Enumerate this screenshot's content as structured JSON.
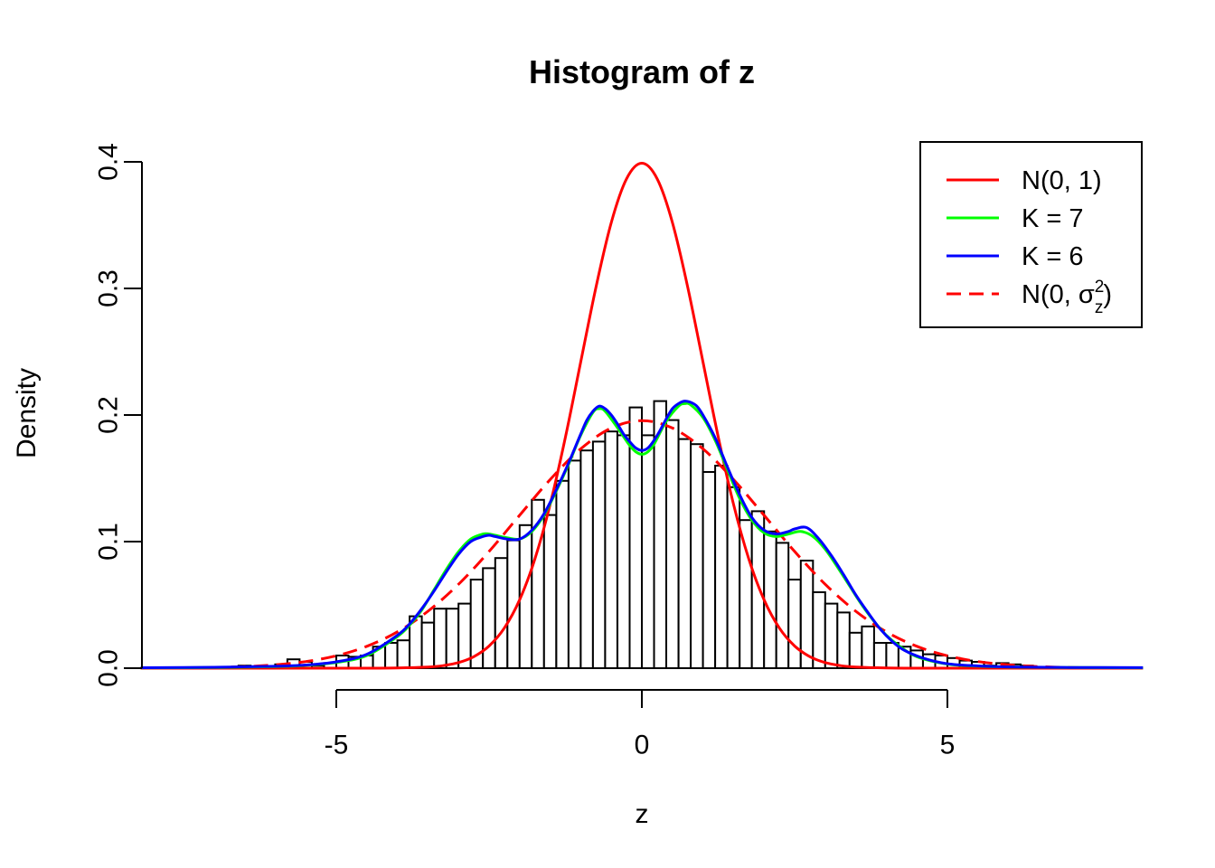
{
  "page": {
    "background": "#ffffff"
  },
  "chart_data": {
    "type": "histogram",
    "title": "Histogram of z",
    "xlabel": "z",
    "ylabel": "Density",
    "x_axis": {
      "tick_labels": [
        "-5",
        "0",
        "5"
      ],
      "tick_values": [
        -5,
        0,
        5
      ],
      "shown_range": [
        -5,
        5
      ]
    },
    "y_axis": {
      "tick_labels": [
        "0.0",
        "0.1",
        "0.2",
        "0.3",
        "0.4"
      ],
      "tick_values": [
        0,
        0.1,
        0.2,
        0.3,
        0.4
      ],
      "ylim": [
        0,
        0.4
      ]
    },
    "grid": false,
    "histogram": {
      "bin_width": 0.2,
      "fill": "#ffffff",
      "stroke": "#000000",
      "bars": [
        [
          -6.6,
          0.002
        ],
        [
          -6.0,
          0.003
        ],
        [
          -5.8,
          0.007
        ],
        [
          -5.6,
          0.005
        ],
        [
          -5.4,
          0.002
        ],
        [
          -5.2,
          0.004
        ],
        [
          -5.0,
          0.01
        ],
        [
          -4.8,
          0.009
        ],
        [
          -4.6,
          0.01
        ],
        [
          -4.4,
          0.017
        ],
        [
          -4.2,
          0.02
        ],
        [
          -4.0,
          0.022
        ],
        [
          -3.8,
          0.041
        ],
        [
          -3.6,
          0.036
        ],
        [
          -3.4,
          0.047
        ],
        [
          -3.2,
          0.047
        ],
        [
          -3.0,
          0.051
        ],
        [
          -2.8,
          0.07
        ],
        [
          -2.6,
          0.079
        ],
        [
          -2.4,
          0.087
        ],
        [
          -2.2,
          0.101
        ],
        [
          -2.0,
          0.113
        ],
        [
          -1.8,
          0.133
        ],
        [
          -1.6,
          0.121
        ],
        [
          -1.4,
          0.148
        ],
        [
          -1.2,
          0.164
        ],
        [
          -1.0,
          0.172
        ],
        [
          -0.8,
          0.179
        ],
        [
          -0.6,
          0.187
        ],
        [
          -0.4,
          0.184
        ],
        [
          -0.2,
          0.206
        ],
        [
          0.0,
          0.184
        ],
        [
          0.2,
          0.211
        ],
        [
          0.4,
          0.196
        ],
        [
          0.6,
          0.181
        ],
        [
          0.8,
          0.177
        ],
        [
          1.0,
          0.155
        ],
        [
          1.2,
          0.16
        ],
        [
          1.4,
          0.143
        ],
        [
          1.6,
          0.117
        ],
        [
          1.8,
          0.124
        ],
        [
          2.0,
          0.108
        ],
        [
          2.2,
          0.099
        ],
        [
          2.4,
          0.07
        ],
        [
          2.6,
          0.085
        ],
        [
          2.8,
          0.06
        ],
        [
          3.0,
          0.051
        ],
        [
          3.2,
          0.044
        ],
        [
          3.4,
          0.028
        ],
        [
          3.6,
          0.033
        ],
        [
          3.8,
          0.02
        ],
        [
          4.0,
          0.02
        ],
        [
          4.2,
          0.017
        ],
        [
          4.4,
          0.014
        ],
        [
          4.6,
          0.011
        ],
        [
          4.8,
          0.01
        ],
        [
          5.0,
          0.008
        ],
        [
          5.2,
          0.006
        ],
        [
          5.4,
          0.005
        ],
        [
          5.6,
          0.002
        ],
        [
          5.8,
          0.004
        ],
        [
          6.0,
          0.003
        ],
        [
          6.2,
          0.002
        ]
      ]
    },
    "series": [
      {
        "id": "n01",
        "label": "N(0, 1)",
        "color": "#ff0000",
        "dashed": false,
        "points": [
          [
            -8.2,
            0.0
          ],
          [
            -5.5,
            0.0
          ],
          [
            -5.0,
            0.0
          ],
          [
            -4.5,
            2e-05
          ],
          [
            -4.0,
            0.00013
          ],
          [
            -3.5,
            0.00087
          ],
          [
            -3.25,
            0.00203
          ],
          [
            -3.0,
            0.00443
          ],
          [
            -2.75,
            0.00909
          ],
          [
            -2.5,
            0.01753
          ],
          [
            -2.25,
            0.03174
          ],
          [
            -2.0,
            0.05399
          ],
          [
            -1.75,
            0.08628
          ],
          [
            -1.5,
            0.12952
          ],
          [
            -1.25,
            0.18265
          ],
          [
            -1.0,
            0.24197
          ],
          [
            -0.75,
            0.30114
          ],
          [
            -0.5,
            0.35207
          ],
          [
            -0.25,
            0.38667
          ],
          [
            0.0,
            0.39894
          ],
          [
            0.25,
            0.38667
          ],
          [
            0.5,
            0.35207
          ],
          [
            0.75,
            0.30114
          ],
          [
            1.0,
            0.24197
          ],
          [
            1.25,
            0.18265
          ],
          [
            1.5,
            0.12952
          ],
          [
            1.75,
            0.08628
          ],
          [
            2.0,
            0.05399
          ],
          [
            2.25,
            0.03174
          ],
          [
            2.5,
            0.01753
          ],
          [
            2.75,
            0.00909
          ],
          [
            3.0,
            0.00443
          ],
          [
            3.25,
            0.00203
          ],
          [
            3.5,
            0.00087
          ],
          [
            4.0,
            0.00013
          ],
          [
            4.5,
            2e-05
          ],
          [
            5.0,
            0.0
          ],
          [
            5.5,
            0.0
          ],
          [
            8.2,
            0.0
          ]
        ]
      },
      {
        "id": "n0sigma2",
        "label": "N(0, σz²)",
        "label_parts": {
          "pre": "N(0, σ",
          "sup": "2",
          "sub": "z",
          "post": ")"
        },
        "color": "#ff0000",
        "dashed": true,
        "sigma": 2.04,
        "peak": 0.1956,
        "points": [
          [
            -8.2,
            7e-05
          ],
          [
            -7.5,
            0.00023
          ],
          [
            -7.0,
            0.00056
          ],
          [
            -6.5,
            0.00125
          ],
          [
            -6.0,
            0.00264
          ],
          [
            -5.5,
            0.00524
          ],
          [
            -5.0,
            0.0098
          ],
          [
            -4.5,
            0.0173
          ],
          [
            -4.0,
            0.0287
          ],
          [
            -3.5,
            0.045
          ],
          [
            -3.0,
            0.0663
          ],
          [
            -2.5,
            0.0922
          ],
          [
            -2.0,
            0.1208
          ],
          [
            -1.5,
            0.149
          ],
          [
            -1.0,
            0.1733
          ],
          [
            -0.5,
            0.1897
          ],
          [
            0.0,
            0.1956
          ],
          [
            0.5,
            0.1897
          ],
          [
            1.0,
            0.1733
          ],
          [
            1.5,
            0.149
          ],
          [
            2.0,
            0.1208
          ],
          [
            2.5,
            0.0922
          ],
          [
            3.0,
            0.0663
          ],
          [
            3.5,
            0.045
          ],
          [
            4.0,
            0.0287
          ],
          [
            4.5,
            0.0173
          ],
          [
            5.0,
            0.0098
          ],
          [
            5.5,
            0.00524
          ],
          [
            6.0,
            0.00264
          ],
          [
            6.5,
            0.00125
          ],
          [
            7.0,
            0.00056
          ],
          [
            7.5,
            0.00023
          ],
          [
            8.2,
            7e-05
          ]
        ]
      },
      {
        "id": "k7",
        "label": "K = 7",
        "color": "#00ff00",
        "dashed": false,
        "points": [
          [
            -8.2,
            0.0003
          ],
          [
            -7.0,
            0.0005
          ],
          [
            -6.0,
            0.0013
          ],
          [
            -5.5,
            0.0022
          ],
          [
            -5.0,
            0.0045
          ],
          [
            -4.5,
            0.01
          ],
          [
            -4.0,
            0.025
          ],
          [
            -3.8,
            0.034
          ],
          [
            -3.6,
            0.046
          ],
          [
            -3.4,
            0.062
          ],
          [
            -3.2,
            0.078
          ],
          [
            -3.0,
            0.092
          ],
          [
            -2.8,
            0.102
          ],
          [
            -2.6,
            0.106
          ],
          [
            -2.5,
            0.106
          ],
          [
            -2.4,
            0.105
          ],
          [
            -2.2,
            0.103
          ],
          [
            -2.0,
            0.102
          ],
          [
            -1.8,
            0.108
          ],
          [
            -1.6,
            0.121
          ],
          [
            -1.4,
            0.14
          ],
          [
            -1.2,
            0.161
          ],
          [
            -1.0,
            0.184
          ],
          [
            -0.8,
            0.202
          ],
          [
            -0.7,
            0.205
          ],
          [
            -0.6,
            0.203
          ],
          [
            -0.4,
            0.19
          ],
          [
            -0.2,
            0.176
          ],
          [
            -0.1,
            0.171
          ],
          [
            0.0,
            0.169
          ],
          [
            0.1,
            0.171
          ],
          [
            0.2,
            0.177
          ],
          [
            0.4,
            0.195
          ],
          [
            0.6,
            0.207
          ],
          [
            0.7,
            0.209
          ],
          [
            0.8,
            0.208
          ],
          [
            1.0,
            0.198
          ],
          [
            1.2,
            0.18
          ],
          [
            1.4,
            0.157
          ],
          [
            1.6,
            0.134
          ],
          [
            1.8,
            0.117
          ],
          [
            2.0,
            0.107
          ],
          [
            2.2,
            0.104
          ],
          [
            2.4,
            0.106
          ],
          [
            2.6,
            0.108
          ],
          [
            2.8,
            0.104
          ],
          [
            3.0,
            0.094
          ],
          [
            3.2,
            0.08
          ],
          [
            3.4,
            0.065
          ],
          [
            3.6,
            0.05
          ],
          [
            3.8,
            0.037
          ],
          [
            4.0,
            0.026
          ],
          [
            4.2,
            0.018
          ],
          [
            4.5,
            0.009
          ],
          [
            5.0,
            0.0032
          ],
          [
            5.5,
            0.0016
          ],
          [
            6.0,
            0.0009
          ],
          [
            7.0,
            0.0005
          ],
          [
            8.2,
            0.0003
          ]
        ]
      },
      {
        "id": "k6",
        "label": "K = 6",
        "color": "#0000ff",
        "dashed": false,
        "points": [
          [
            -8.2,
            0.0004
          ],
          [
            -7.0,
            0.0007
          ],
          [
            -6.0,
            0.0015
          ],
          [
            -5.5,
            0.0025
          ],
          [
            -5.0,
            0.005
          ],
          [
            -4.5,
            0.011
          ],
          [
            -4.0,
            0.026
          ],
          [
            -3.8,
            0.035
          ],
          [
            -3.6,
            0.047
          ],
          [
            -3.4,
            0.061
          ],
          [
            -3.2,
            0.076
          ],
          [
            -3.0,
            0.09
          ],
          [
            -2.8,
            0.1
          ],
          [
            -2.6,
            0.104
          ],
          [
            -2.5,
            0.105
          ],
          [
            -2.4,
            0.104
          ],
          [
            -2.2,
            0.102
          ],
          [
            -2.0,
            0.102
          ],
          [
            -1.8,
            0.109
          ],
          [
            -1.6,
            0.122
          ],
          [
            -1.4,
            0.141
          ],
          [
            -1.2,
            0.162
          ],
          [
            -1.0,
            0.185
          ],
          [
            -0.9,
            0.196
          ],
          [
            -0.8,
            0.203
          ],
          [
            -0.7,
            0.207
          ],
          [
            -0.6,
            0.205
          ],
          [
            -0.5,
            0.2
          ],
          [
            -0.4,
            0.193
          ],
          [
            -0.3,
            0.185
          ],
          [
            -0.2,
            0.179
          ],
          [
            -0.1,
            0.174
          ],
          [
            0.0,
            0.172
          ],
          [
            0.1,
            0.174
          ],
          [
            0.2,
            0.18
          ],
          [
            0.3,
            0.188
          ],
          [
            0.4,
            0.197
          ],
          [
            0.5,
            0.205
          ],
          [
            0.6,
            0.209
          ],
          [
            0.7,
            0.211
          ],
          [
            0.8,
            0.21
          ],
          [
            0.9,
            0.207
          ],
          [
            1.0,
            0.2
          ],
          [
            1.2,
            0.182
          ],
          [
            1.4,
            0.159
          ],
          [
            1.6,
            0.137
          ],
          [
            1.8,
            0.119
          ],
          [
            2.0,
            0.109
          ],
          [
            2.2,
            0.106
          ],
          [
            2.4,
            0.108
          ],
          [
            2.5,
            0.11
          ],
          [
            2.7,
            0.111
          ],
          [
            2.9,
            0.102
          ],
          [
            3.1,
            0.089
          ],
          [
            3.3,
            0.074
          ],
          [
            3.5,
            0.058
          ],
          [
            3.7,
            0.044
          ],
          [
            3.9,
            0.031
          ],
          [
            4.1,
            0.021
          ],
          [
            4.3,
            0.014
          ],
          [
            4.6,
            0.008
          ],
          [
            5.0,
            0.0035
          ],
          [
            5.5,
            0.0018
          ],
          [
            6.0,
            0.001
          ],
          [
            7.0,
            0.0006
          ],
          [
            8.2,
            0.0004
          ]
        ]
      }
    ],
    "draw_order": [
      "n01",
      "n0sigma2",
      "k7",
      "k6"
    ],
    "legend": {
      "position": "top-right",
      "order": [
        "n01",
        "k7",
        "k6",
        "n0sigma2"
      ]
    }
  }
}
